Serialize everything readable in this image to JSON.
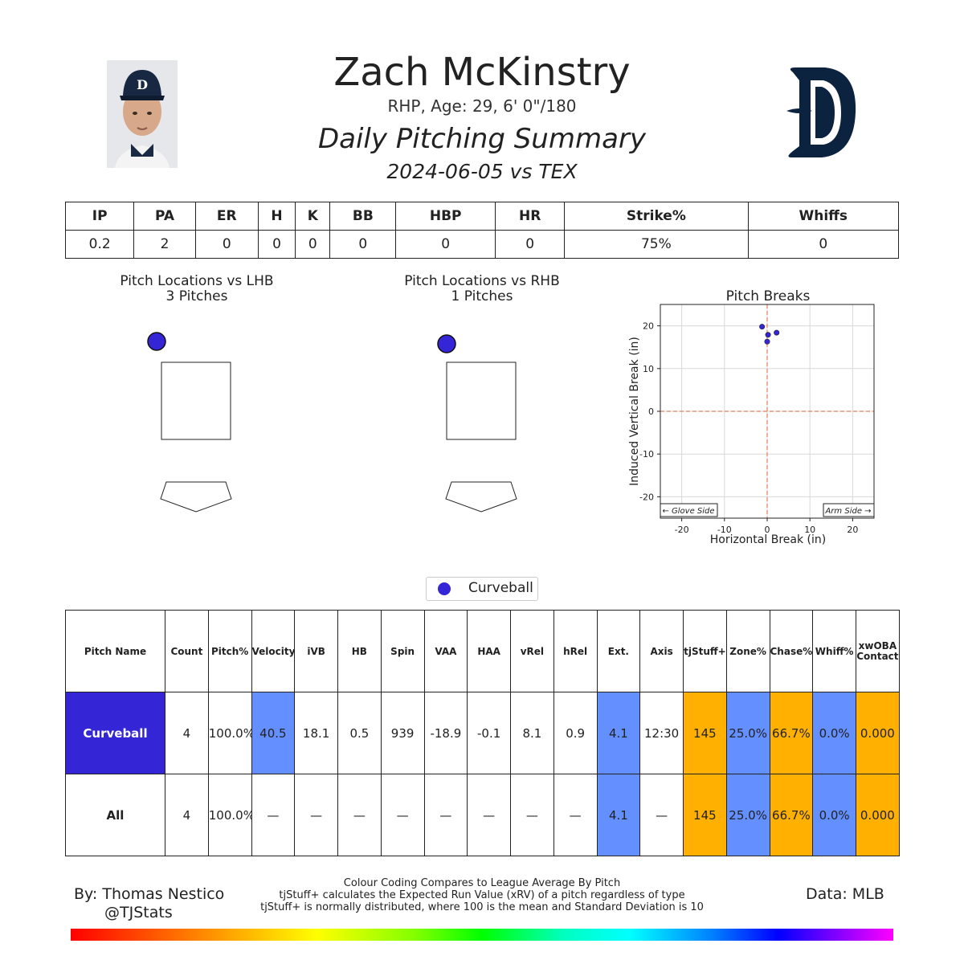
{
  "header": {
    "player_name": "Zach McKinstry",
    "player_info": "RHP, Age: 29, 6' 0\"/180",
    "summary_title": "Daily Pitching Summary",
    "game_info": "2024-06-05 vs TEX"
  },
  "colors": {
    "curveball": "#3425d6",
    "above_avg": "#648fff",
    "below_avg": "#ffb000",
    "team_navy": "#0c2340"
  },
  "stat_line": {
    "headers": [
      "IP",
      "PA",
      "ER",
      "H",
      "K",
      "BB",
      "HBP",
      "HR",
      "Strike%",
      "Whiffs"
    ],
    "values": [
      "0.2",
      "2",
      "0",
      "0",
      "0",
      "0",
      "0",
      "0",
      "75%",
      "0"
    ]
  },
  "location_plots": [
    {
      "title": "Pitch Locations vs LHB",
      "subtitle": "3 Pitches"
    },
    {
      "title": "Pitch Locations vs RHB",
      "subtitle": "1 Pitches"
    }
  ],
  "chart_data": {
    "type": "scatter",
    "title": "Pitch Breaks",
    "xlabel": "Horizontal Break (in)",
    "ylabel": "Induced Vertical Break (in)",
    "xlim": [
      -25,
      25
    ],
    "ylim": [
      -25,
      25
    ],
    "xticks": [
      -20,
      -10,
      0,
      10,
      20
    ],
    "yticks": [
      -20,
      -10,
      0,
      10,
      20
    ],
    "grid": true,
    "annotations": {
      "left": "← Glove Side",
      "right": "Arm Side →"
    },
    "series": [
      {
        "name": "Curveball",
        "color": "#3425d6",
        "points": [
          [
            -1.2,
            19.8
          ],
          [
            0.2,
            17.9
          ],
          [
            2.2,
            18.4
          ],
          [
            0.0,
            16.3
          ]
        ]
      }
    ]
  },
  "legend": {
    "label": "Curveball"
  },
  "pitch_table": {
    "headers": [
      "Pitch Name",
      "Count",
      "Pitch%",
      "Velocity",
      "iVB",
      "HB",
      "Spin",
      "VAA",
      "HAA",
      "vRel",
      "hRel",
      "Ext.",
      "Axis",
      "tjStuff+",
      "Zone%",
      "Chase%",
      "Whiff%",
      "xwOBA Contact"
    ],
    "rows": [
      {
        "cells": [
          "Curveball",
          "4",
          "100.0%",
          "40.5",
          "18.1",
          "0.5",
          "939",
          "-18.9",
          "-0.1",
          "8.1",
          "0.9",
          "4.1",
          "12:30",
          "145",
          "25.0%",
          "66.7%",
          "0.0%",
          "0.000"
        ]
      },
      {
        "cells": [
          "All",
          "4",
          "100.0%",
          "—",
          "—",
          "—",
          "—",
          "—",
          "—",
          "—",
          "—",
          "4.1",
          "—",
          "145",
          "25.0%",
          "66.7%",
          "0.0%",
          "0.000"
        ]
      }
    ]
  },
  "footer": {
    "author": "By: Thomas Nestico",
    "handle": "@TJStats",
    "data_source": "Data: MLB",
    "notes": [
      "Colour Coding Compares to League Average By Pitch",
      "tjStuff+ calculates the Expected Run Value (xRV) of a pitch regardless of type",
      "tjStuff+ is normally distributed, where 100 is the mean and Standard Deviation is 10"
    ]
  }
}
